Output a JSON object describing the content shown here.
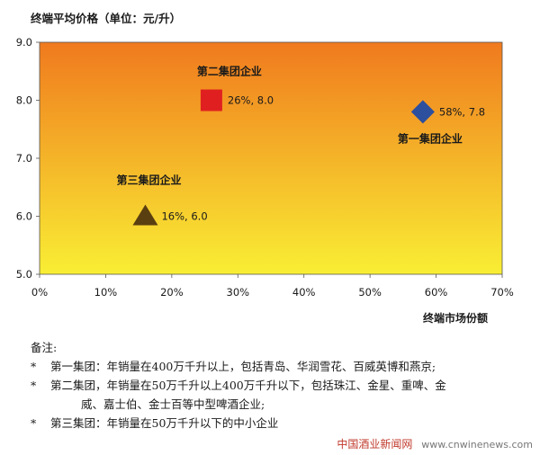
{
  "chart_data": {
    "type": "scatter",
    "title": "终端平均价格（单位：元/升）",
    "xlabel": "终端市场份额",
    "ylabel": "",
    "xlim": [
      0,
      0.7
    ],
    "ylim": [
      5.0,
      9.0
    ],
    "x_ticks": [
      "0%",
      "10%",
      "20%",
      "30%",
      "40%",
      "50%",
      "60%",
      "70%"
    ],
    "y_ticks": [
      "5.0",
      "6.0",
      "7.0",
      "8.0",
      "9.0"
    ],
    "grid": false,
    "points": [
      {
        "name": "第二集团企业",
        "x": 0.26,
        "y": 8.0,
        "label": "26%, 8.0",
        "marker": "square",
        "color": "#e02020"
      },
      {
        "name": "第一集团企业",
        "x": 0.58,
        "y": 7.8,
        "label": "58%, 7.8",
        "marker": "diamond",
        "color": "#2c4f9e"
      },
      {
        "name": "第三集团企业",
        "x": 0.16,
        "y": 6.0,
        "label": "16%, 6.0",
        "marker": "triangle",
        "color": "#5a3f10"
      }
    ],
    "background_gradient": [
      "#f07a1e",
      "#f9ee34"
    ]
  },
  "notes": {
    "title": "备注:",
    "bullet": "*",
    "items": [
      "第一集团：年销量在400万千升以上，包括青岛、华润雪花、百威英博和燕京;",
      "第二集团，年销量在50万千升以上400万千升以下，包括珠江、金星、重啤、金",
      "第三集团：年销量在50万千升以下的中小企业"
    ],
    "continuation": "威、嘉士伯、金士百等中型啤酒企业;"
  },
  "watermark": {
    "logo": "中国酒业新闻网",
    "site": "www.cnwinenews.com"
  }
}
